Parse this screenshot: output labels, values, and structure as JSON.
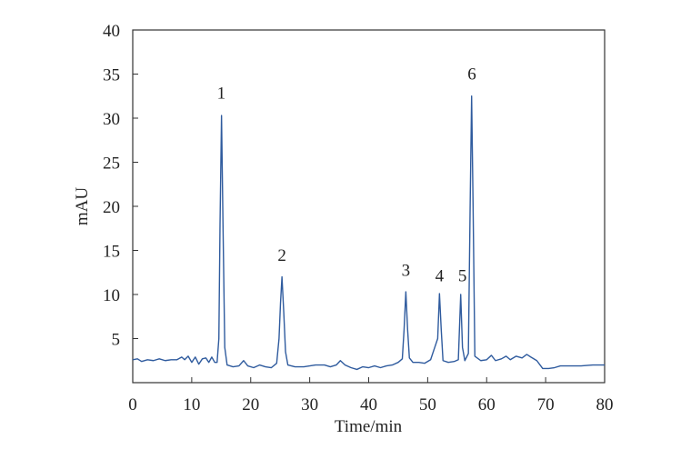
{
  "chart_data": {
    "type": "line",
    "title": "",
    "xlabel": "Time/min",
    "ylabel": "mAU",
    "xlim": [
      0,
      80
    ],
    "ylim": [
      0,
      40
    ],
    "x_ticks": [
      "0",
      "10",
      "20",
      "30",
      "40",
      "50",
      "60",
      "70",
      "80"
    ],
    "y_ticks": [
      "5",
      "10",
      "15",
      "20",
      "25",
      "30",
      "35",
      "40"
    ],
    "grid": false,
    "legend": "none",
    "series_color": "#2f5b9e",
    "series": [
      {
        "points": [
          [
            0,
            2.6
          ],
          [
            0.8,
            2.7
          ],
          [
            1.5,
            2.4
          ],
          [
            2.5,
            2.6
          ],
          [
            3.5,
            2.5
          ],
          [
            4.5,
            2.7
          ],
          [
            5.5,
            2.5
          ],
          [
            6.5,
            2.6
          ],
          [
            7.5,
            2.6
          ],
          [
            8.3,
            2.9
          ],
          [
            8.8,
            2.6
          ],
          [
            9.4,
            3.0
          ],
          [
            10.0,
            2.3
          ],
          [
            10.6,
            2.9
          ],
          [
            11.2,
            2.1
          ],
          [
            11.8,
            2.7
          ],
          [
            12.4,
            2.8
          ],
          [
            12.9,
            2.3
          ],
          [
            13.4,
            2.9
          ],
          [
            13.9,
            2.3
          ],
          [
            14.3,
            2.3
          ],
          [
            14.6,
            5.0
          ],
          [
            14.8,
            18.0
          ],
          [
            15.05,
            30.3
          ],
          [
            15.3,
            18.0
          ],
          [
            15.6,
            4.0
          ],
          [
            16.0,
            2.0
          ],
          [
            17.0,
            1.8
          ],
          [
            18.0,
            1.9
          ],
          [
            18.8,
            2.5
          ],
          [
            19.5,
            1.9
          ],
          [
            20.5,
            1.7
          ],
          [
            21.5,
            2.0
          ],
          [
            22.5,
            1.8
          ],
          [
            23.5,
            1.7
          ],
          [
            24.4,
            2.2
          ],
          [
            24.8,
            5.0
          ],
          [
            25.05,
            9.0
          ],
          [
            25.3,
            12.0
          ],
          [
            25.6,
            8.0
          ],
          [
            25.9,
            3.5
          ],
          [
            26.3,
            2.0
          ],
          [
            27.5,
            1.8
          ],
          [
            29.0,
            1.8
          ],
          [
            30.0,
            1.9
          ],
          [
            31.0,
            2.0
          ],
          [
            32.5,
            2.0
          ],
          [
            33.5,
            1.8
          ],
          [
            34.5,
            2.0
          ],
          [
            35.2,
            2.5
          ],
          [
            36.0,
            2.0
          ],
          [
            37.0,
            1.7
          ],
          [
            38.0,
            1.5
          ],
          [
            39.0,
            1.8
          ],
          [
            40.0,
            1.7
          ],
          [
            41.0,
            1.9
          ],
          [
            42.0,
            1.7
          ],
          [
            43.0,
            1.9
          ],
          [
            44.0,
            2.0
          ],
          [
            45.0,
            2.3
          ],
          [
            45.7,
            2.7
          ],
          [
            46.0,
            6.0
          ],
          [
            46.3,
            10.3
          ],
          [
            46.6,
            6.0
          ],
          [
            46.9,
            2.8
          ],
          [
            47.5,
            2.3
          ],
          [
            48.5,
            2.3
          ],
          [
            49.5,
            2.2
          ],
          [
            50.5,
            2.6
          ],
          [
            51.2,
            4.0
          ],
          [
            51.7,
            5.0
          ],
          [
            52.0,
            10.1
          ],
          [
            52.3,
            6.0
          ],
          [
            52.6,
            2.5
          ],
          [
            53.5,
            2.3
          ],
          [
            54.5,
            2.4
          ],
          [
            55.2,
            2.6
          ],
          [
            55.6,
            10.0
          ],
          [
            55.9,
            4.0
          ],
          [
            56.3,
            2.5
          ],
          [
            56.9,
            3.3
          ],
          [
            57.2,
            20.0
          ],
          [
            57.45,
            32.5
          ],
          [
            57.7,
            20.0
          ],
          [
            58.0,
            3.0
          ],
          [
            59.0,
            2.5
          ],
          [
            60.0,
            2.6
          ],
          [
            60.8,
            3.1
          ],
          [
            61.5,
            2.5
          ],
          [
            62.5,
            2.7
          ],
          [
            63.3,
            3.0
          ],
          [
            64.0,
            2.6
          ],
          [
            65.0,
            3.0
          ],
          [
            66.0,
            2.8
          ],
          [
            66.8,
            3.2
          ],
          [
            67.5,
            2.9
          ],
          [
            68.5,
            2.5
          ],
          [
            69.5,
            1.6
          ],
          [
            70.5,
            1.6
          ],
          [
            71.5,
            1.7
          ],
          [
            72.5,
            1.9
          ],
          [
            74.0,
            1.9
          ],
          [
            76.0,
            1.9
          ],
          [
            78.0,
            2.0
          ],
          [
            80.0,
            2.0
          ]
        ]
      }
    ],
    "annotations": [
      {
        "text": "1",
        "x": 15.0,
        "y": 32.2
      },
      {
        "text": "2",
        "x": 25.3,
        "y": 13.8
      },
      {
        "text": "3",
        "x": 46.3,
        "y": 12.1
      },
      {
        "text": "4",
        "x": 52.0,
        "y": 11.5
      },
      {
        "text": "5",
        "x": 55.9,
        "y": 11.5
      },
      {
        "text": "6",
        "x": 57.5,
        "y": 34.4
      }
    ]
  }
}
